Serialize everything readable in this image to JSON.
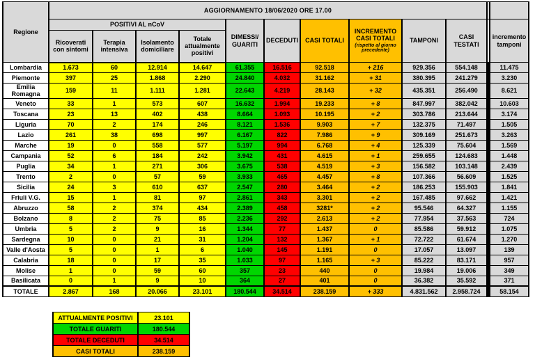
{
  "title": "AGGIORNAMENTO 18/06/2020 ORE 17.00",
  "colors": {
    "yellow": "#ffff00",
    "green": "#00d600",
    "red": "#ff0000",
    "orange": "#ffc000",
    "hdr": "#d9d9d9",
    "cellgray": "#d9d9d9",
    "greentxt": "#9c0006",
    "redtxt": "#8c0000"
  },
  "table": {
    "headers": {
      "regione": "Regione",
      "positivi_group": "POSITIVI AL nCoV",
      "sub": [
        "Ricoverati con sintomi",
        "Terapia intensiva",
        "Isolamento domiciliare",
        "Totale attualmente positivi"
      ],
      "dimessi": "DIMESSI/ GUARITI",
      "deceduti": "DECEDUTI",
      "casi_totali": "CASI TOTALI",
      "incremento": "INCREMENTO CASI TOTALI",
      "incremento_note": "(rispetto al giorno precedente)",
      "tamponi": "TAMPONI",
      "casi_testati": "CASI TESTATI",
      "incremento_tamponi": "incremento tamponi"
    },
    "rows": [
      [
        "Lombardia",
        "1.673",
        "60",
        "12.914",
        "14.647",
        "61.355",
        "16.516",
        "92.518",
        "+ 216",
        "929.356",
        "554.148",
        "11.475"
      ],
      [
        "Piemonte",
        "397",
        "25",
        "1.868",
        "2.290",
        "24.840",
        "4.032",
        "31.162",
        "+ 31",
        "380.395",
        "241.279",
        "3.230"
      ],
      [
        "Emilia Romagna",
        "159",
        "11",
        "1.111",
        "1.281",
        "22.643",
        "4.219",
        "28.143",
        "+ 32",
        "435.351",
        "256.490",
        "8.621"
      ],
      [
        "Veneto",
        "33",
        "1",
        "573",
        "607",
        "16.632",
        "1.994",
        "19.233",
        "+ 8",
        "847.997",
        "382.042",
        "10.603"
      ],
      [
        "Toscana",
        "23",
        "13",
        "402",
        "438",
        "8.664",
        "1.093",
        "10.195",
        "+ 2",
        "303.786",
        "213.644",
        "3.174"
      ],
      [
        "Liguria",
        "70",
        "2",
        "174",
        "246",
        "8.121",
        "1.536",
        "9.903",
        "+ 7",
        "132.375",
        "71.497",
        "1.505"
      ],
      [
        "Lazio",
        "261",
        "38",
        "698",
        "997",
        "6.167",
        "822",
        "7.986",
        "+ 9",
        "309.169",
        "251.673",
        "3.263"
      ],
      [
        "Marche",
        "19",
        "0",
        "558",
        "577",
        "5.197",
        "994",
        "6.768",
        "+ 4",
        "125.339",
        "75.604",
        "1.569"
      ],
      [
        "Campania",
        "52",
        "6",
        "184",
        "242",
        "3.942",
        "431",
        "4.615",
        "+ 1",
        "259.655",
        "124.683",
        "1.448"
      ],
      [
        "Puglia",
        "34",
        "1",
        "271",
        "306",
        "3.675",
        "538",
        "4.519",
        "+ 3",
        "156.582",
        "103.148",
        "2.439"
      ],
      [
        "Trento",
        "2",
        "0",
        "57",
        "59",
        "3.933",
        "465",
        "4.457",
        "+ 8",
        "107.366",
        "56.609",
        "1.525"
      ],
      [
        "Sicilia",
        "24",
        "3",
        "610",
        "637",
        "2.547",
        "280",
        "3.464",
        "+ 2",
        "186.253",
        "155.903",
        "1.841"
      ],
      [
        "Friuli V.G.",
        "15",
        "1",
        "81",
        "97",
        "2.861",
        "343",
        "3.301",
        "+ 2",
        "167.485",
        "97.662",
        "1.421"
      ],
      [
        "Abruzzo",
        "58",
        "2",
        "374",
        "434",
        "2.389",
        "458",
        "3281*",
        "+ 2",
        "95.546",
        "64.327",
        "1.155"
      ],
      [
        "Bolzano",
        "8",
        "2",
        "75",
        "85",
        "2.236",
        "292",
        "2.613",
        "+ 2",
        "77.954",
        "37.563",
        "724"
      ],
      [
        "Umbria",
        "5",
        "2",
        "9",
        "16",
        "1.344",
        "77",
        "1.437",
        "0",
        "85.586",
        "59.912",
        "1.075"
      ],
      [
        "Sardegna",
        "10",
        "0",
        "21",
        "31",
        "1.204",
        "132",
        "1.367",
        "+ 1",
        "72.722",
        "61.674",
        "1.270"
      ],
      [
        "Valle d'Aosta",
        "5",
        "0",
        "1",
        "6",
        "1.040",
        "145",
        "1.191",
        "0",
        "17.057",
        "13.097",
        "139"
      ],
      [
        "Calabria",
        "18",
        "0",
        "17",
        "35",
        "1.033",
        "97",
        "1.165",
        "+ 3",
        "85.222",
        "83.171",
        "957"
      ],
      [
        "Molise",
        "1",
        "0",
        "59",
        "60",
        "357",
        "23",
        "440",
        "0",
        "19.984",
        "19.006",
        "349"
      ],
      [
        "Basilicata",
        "0",
        "1",
        "9",
        "10",
        "364",
        "27",
        "401",
        "0",
        "36.382",
        "35.592",
        "371"
      ]
    ],
    "totale": [
      "TOTALE",
      "2.867",
      "168",
      "20.066",
      "23.101",
      "180.544",
      "34.514",
      "238.159",
      "+ 333",
      "4.831.562",
      "2.958.724",
      "58.154"
    ]
  },
  "summary": {
    "rows": [
      {
        "label": "ATTUALMENTE POSITIVI",
        "value": "23.101",
        "color": "yellow"
      },
      {
        "label": "TOTALE GUARITI",
        "value": "180.544",
        "color": "green"
      },
      {
        "label": "TOTALE DECEDUTI",
        "value": "34.514",
        "color": "red"
      },
      {
        "label": "CASI TOTALI",
        "value": "238.159",
        "color": "orange"
      }
    ]
  }
}
